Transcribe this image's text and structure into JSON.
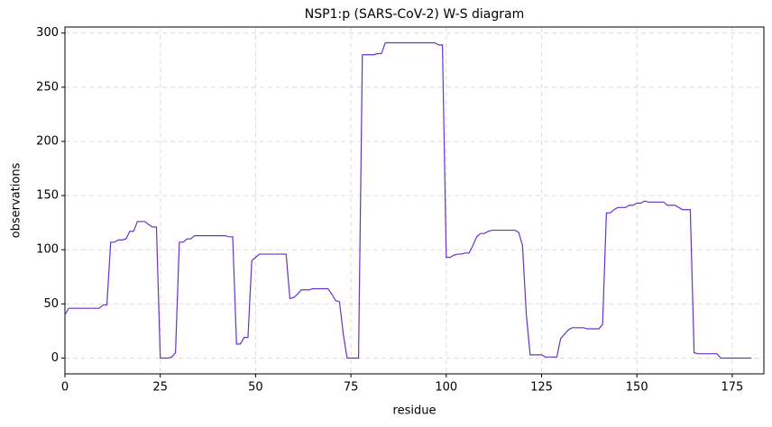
{
  "chart_data": {
    "type": "line",
    "title": "NSP1:p (SARS-CoV-2) W-S diagram",
    "x_label": "residue",
    "y_label": "observations",
    "x": [
      0,
      1,
      2,
      3,
      4,
      5,
      6,
      7,
      8,
      9,
      10,
      11,
      12,
      13,
      14,
      15,
      16,
      17,
      18,
      19,
      20,
      21,
      22,
      23,
      24,
      25,
      26,
      27,
      28,
      29,
      30,
      31,
      32,
      33,
      34,
      35,
      36,
      37,
      38,
      39,
      40,
      41,
      42,
      43,
      44,
      45,
      46,
      47,
      48,
      49,
      50,
      51,
      52,
      53,
      54,
      55,
      56,
      57,
      58,
      59,
      60,
      61,
      62,
      63,
      64,
      65,
      66,
      67,
      68,
      69,
      70,
      71,
      72,
      73,
      74,
      75,
      76,
      77,
      78,
      79,
      80,
      81,
      82,
      83,
      84,
      85,
      86,
      87,
      88,
      89,
      90,
      91,
      92,
      93,
      94,
      95,
      96,
      97,
      98,
      99,
      100,
      101,
      102,
      103,
      104,
      105,
      106,
      107,
      108,
      109,
      110,
      111,
      112,
      113,
      114,
      115,
      116,
      117,
      118,
      119,
      120,
      121,
      122,
      123,
      124,
      125,
      126,
      127,
      128,
      129,
      130,
      131,
      132,
      133,
      134,
      135,
      136,
      137,
      138,
      139,
      140,
      141,
      142,
      143,
      144,
      145,
      146,
      147,
      148,
      149,
      150,
      151,
      152,
      153,
      154,
      155,
      156,
      157,
      158,
      159,
      160,
      161,
      162,
      163,
      164,
      165,
      166,
      167,
      168,
      169,
      170,
      171,
      172,
      173,
      174,
      175,
      176,
      177,
      178,
      179,
      180
    ],
    "series": [
      {
        "name": "observations",
        "color": "#6633cc",
        "values": [
          40,
          46,
          46,
          46,
          46,
          46,
          46,
          46,
          46,
          46,
          49,
          49,
          107,
          107,
          109,
          109,
          110,
          117,
          117,
          126,
          126,
          126,
          123,
          121,
          121,
          0,
          0,
          0,
          1,
          5,
          107,
          107,
          110,
          110,
          113,
          113,
          113,
          113,
          113,
          113,
          113,
          113,
          113,
          112,
          112,
          13,
          13,
          19,
          19,
          90,
          93,
          96,
          96,
          96,
          96,
          96,
          96,
          96,
          96,
          55,
          56,
          59,
          63,
          63,
          63,
          64,
          64,
          64,
          64,
          64,
          59,
          53,
          52,
          22,
          0,
          0,
          0,
          0,
          280,
          280,
          280,
          280,
          281,
          281,
          291,
          291,
          291,
          291,
          291,
          291,
          291,
          291,
          291,
          291,
          291,
          291,
          291,
          291,
          289,
          289,
          93,
          93,
          95,
          96,
          96,
          97,
          97,
          104,
          112,
          115,
          115,
          117,
          118,
          118,
          118,
          118,
          118,
          118,
          118,
          116,
          104,
          40,
          3,
          3,
          3,
          3,
          1,
          1,
          1,
          1,
          18,
          22,
          26,
          28,
          28,
          28,
          28,
          27,
          27,
          27,
          27,
          31,
          134,
          134,
          137,
          139,
          139,
          139,
          141,
          141,
          143,
          143,
          145,
          144,
          144,
          144,
          144,
          144,
          141,
          141,
          141,
          139,
          137,
          137,
          137,
          5,
          4,
          4,
          4,
          4,
          4,
          4,
          0,
          0,
          0,
          0,
          0,
          0,
          0,
          0,
          0
        ]
      }
    ],
    "xlim": [
      0,
      183.3
    ],
    "ylim": [
      -14.55,
      305.55
    ],
    "xticks": [
      0,
      25,
      50,
      75,
      100,
      125,
      150,
      175
    ],
    "yticks": [
      0,
      50,
      100,
      150,
      200,
      250,
      300
    ],
    "grid": true
  }
}
